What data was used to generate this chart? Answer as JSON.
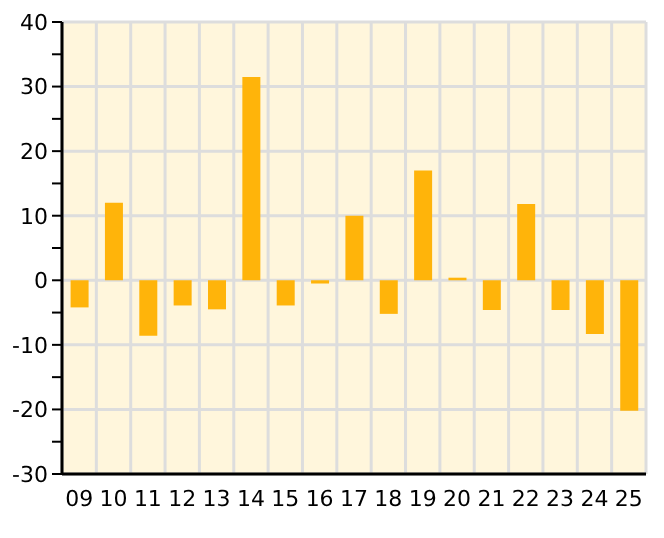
{
  "chart_data": {
    "type": "bar",
    "categories": [
      "09",
      "10",
      "11",
      "12",
      "13",
      "14",
      "15",
      "16",
      "17",
      "18",
      "19",
      "20",
      "21",
      "22",
      "23",
      "24",
      "25"
    ],
    "values": [
      -4.2,
      12,
      -8.6,
      -3.9,
      -4.5,
      31.5,
      -3.9,
      -0.5,
      10,
      -5.2,
      17,
      0.4,
      -4.6,
      11.8,
      -4.6,
      -8.3,
      -20.2
    ],
    "color": "#ffb40a",
    "ylim": [
      -30,
      40
    ],
    "yticks": [
      -30,
      {
        "value": -25,
        "label": null
      },
      -20,
      {
        "value": -15,
        "label": null
      },
      -10,
      {
        "value": -5,
        "label": null
      },
      0,
      {
        "value": 5,
        "label": null
      },
      10,
      {
        "value": 15,
        "label": null
      },
      20,
      {
        "value": 25,
        "label": null
      },
      30,
      {
        "value": 35,
        "label": null
      },
      40
    ],
    "grid": true
  }
}
